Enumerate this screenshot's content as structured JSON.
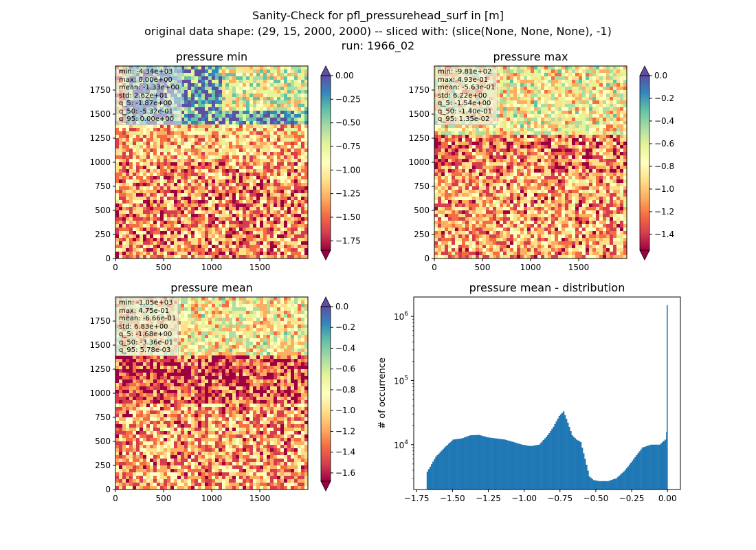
{
  "figure": {
    "title_lines": [
      "Sanity-Check for pfl_pressurehead_surf in [m]",
      "original data shape: (29, 15, 2000, 2000) -- sliced with: (slice(None, None, None), -1)",
      "run: 1966_02"
    ]
  },
  "chart_data": [
    {
      "type": "heatmap",
      "title": "pressure min",
      "xlim": [
        0,
        2000
      ],
      "ylim": [
        0,
        2000
      ],
      "x_ticks": [
        0,
        500,
        1000,
        1500
      ],
      "y_ticks": [
        0,
        250,
        500,
        750,
        1000,
        1250,
        1500,
        1750
      ],
      "colormap": "Spectral",
      "colorbar": {
        "vmin": -1.85,
        "vmax": 0.0,
        "ticks": [
          0.0,
          -0.25,
          -0.5,
          -0.75,
          -1.0,
          -1.25,
          -1.5,
          -1.75
        ],
        "tick_labels": [
          "0.00",
          "−0.25",
          "−0.50",
          "−0.75",
          "−1.00",
          "−1.25",
          "−1.50",
          "−1.75"
        ],
        "extend": "both"
      },
      "stats": [
        "min: -4.34e+03",
        "max: 0.00e+00",
        "mean: -1.33e+00",
        "std: 2.62e+01",
        "q_5: -1.87e+00",
        "q_50: -5.32e-01",
        "q_95: 0.00e+00"
      ]
    },
    {
      "type": "heatmap",
      "title": "pressure max",
      "xlim": [
        0,
        2000
      ],
      "ylim": [
        0,
        2000
      ],
      "x_ticks": [
        0,
        500,
        1000,
        1500
      ],
      "y_ticks": [
        0,
        250,
        500,
        750,
        1000,
        1250,
        1500,
        1750
      ],
      "colormap": "Spectral",
      "colorbar": {
        "vmin": -1.54,
        "vmax": 0.0,
        "ticks": [
          0.0,
          -0.2,
          -0.4,
          -0.6,
          -0.8,
          -1.0,
          -1.2,
          -1.4
        ],
        "tick_labels": [
          "0.0",
          "−0.2",
          "−0.4",
          "−0.6",
          "−0.8",
          "−1.0",
          "−1.2",
          "−1.4"
        ],
        "extend": "both"
      },
      "stats": [
        "min: -9.81e+02",
        "max: 4.93e-01",
        "mean: -5.63e-01",
        "std: 6.22e+00",
        "q_5: -1.54e+00",
        "q_50: -1.40e-01",
        "q_95: 1.35e-02"
      ]
    },
    {
      "type": "heatmap",
      "title": "pressure mean",
      "xlim": [
        0,
        2000
      ],
      "ylim": [
        0,
        2000
      ],
      "x_ticks": [
        0,
        500,
        1000,
        1500
      ],
      "y_ticks": [
        0,
        250,
        500,
        750,
        1000,
        1250,
        1500,
        1750
      ],
      "colormap": "Spectral",
      "colorbar": {
        "vmin": -1.68,
        "vmax": 0.0,
        "ticks": [
          0.0,
          -0.2,
          -0.4,
          -0.6,
          -0.8,
          -1.0,
          -1.2,
          -1.4,
          -1.6
        ],
        "tick_labels": [
          "0.0",
          "−0.2",
          "−0.4",
          "−0.6",
          "−0.8",
          "−1.0",
          "−1.2",
          "−1.4",
          "−1.6"
        ],
        "extend": "both"
      },
      "stats": [
        "min: -1.05e+03",
        "max: 4.75e-01",
        "mean: -6.66e-01",
        "std: 6.83e+00",
        "q_5: -1.68e+00",
        "q_50: -3.36e-01",
        "q_95: 5.78e-03"
      ]
    },
    {
      "type": "bar",
      "title": "pressure mean - distribution",
      "xlabel": "",
      "ylabel": "# of occurrence",
      "yscale": "log",
      "xlim": [
        -1.77,
        0.09
      ],
      "ylim": [
        2000,
        2000000
      ],
      "x_ticks": [
        -1.75,
        -1.5,
        -1.25,
        -1.0,
        -0.75,
        -0.5,
        -0.25,
        0.0
      ],
      "x_tick_labels": [
        "−1.75",
        "−1.50",
        "−1.25",
        "−1.00",
        "−0.75",
        "−0.50",
        "−0.25",
        "0.00"
      ],
      "y_ticks": [
        10000,
        100000,
        1000000
      ],
      "y_tick_labels": [
        "10^4",
        "10^5",
        "10^6"
      ],
      "bar_color": "#1f77b4",
      "x": [
        -1.68,
        -1.62,
        -1.56,
        -1.5,
        -1.44,
        -1.38,
        -1.32,
        -1.26,
        -1.2,
        -1.14,
        -1.08,
        -1.02,
        -0.96,
        -0.9,
        -0.84,
        -0.8,
        -0.76,
        -0.73,
        -0.7,
        -0.67,
        -0.64,
        -0.61,
        -0.58,
        -0.55,
        -0.52,
        -0.48,
        -0.42,
        -0.36,
        -0.3,
        -0.24,
        -0.18,
        -0.12,
        -0.06,
        -0.02,
        -0.005,
        0.0
      ],
      "y": [
        3800,
        6500,
        9000,
        12000,
        12500,
        14000,
        14200,
        13000,
        12500,
        12000,
        11000,
        10000,
        9500,
        10000,
        14000,
        19000,
        28000,
        33000,
        22000,
        14000,
        12000,
        11000,
        6000,
        3200,
        2800,
        2700,
        2700,
        3000,
        4000,
        6000,
        9000,
        10000,
        10000,
        12000,
        18000,
        1500000
      ]
    }
  ]
}
